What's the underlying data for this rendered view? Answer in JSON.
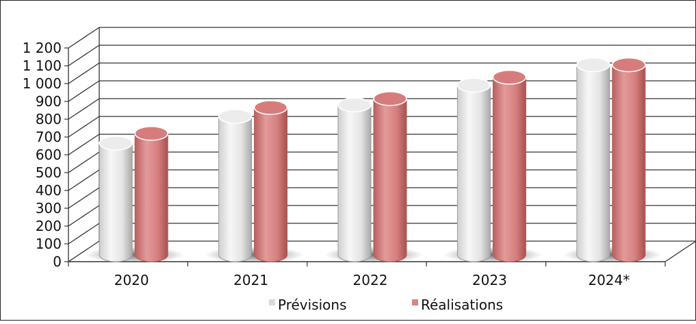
{
  "chart_data": {
    "type": "bar",
    "categories": [
      "2020",
      "2021",
      "2022",
      "2023",
      "2024*"
    ],
    "series": [
      {
        "name": "Prévisions",
        "values": [
          650,
          800,
          865,
          975,
          1090
        ],
        "color": "#e6e6e6"
      },
      {
        "name": "Réalisations",
        "values": [
          705,
          850,
          900,
          1020,
          1090
        ],
        "color": "#d98585"
      }
    ],
    "yticks": [
      "0",
      "100",
      "200",
      "300",
      "400",
      "500",
      "600",
      "700",
      "800",
      "900",
      "1 000",
      "1 100",
      "1 200"
    ],
    "ylim": [
      0,
      1200
    ],
    "grid": true,
    "legend_position": "bottom",
    "style": "3d-cylinders"
  }
}
